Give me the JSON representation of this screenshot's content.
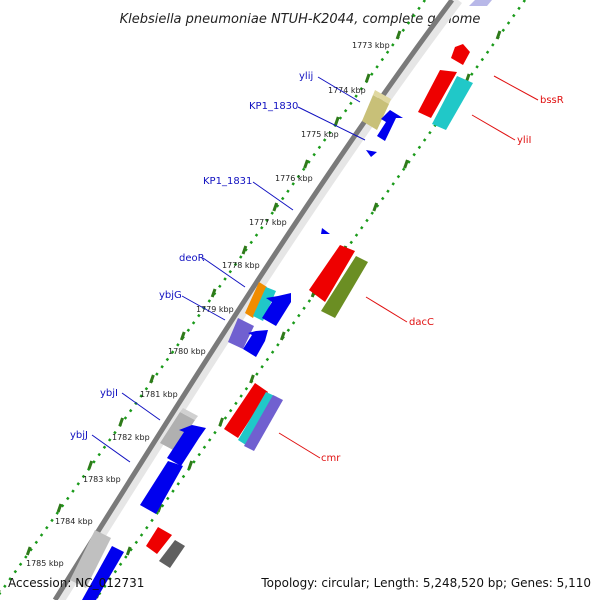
{
  "title": "Klebsiella pneumoniae NTUH-K2044, complete genome",
  "footer": {
    "accession": "Accession: NC_012731",
    "topology": "Topology: circular; Length: 5,248,520 bp; Genes: 5,110"
  },
  "colors": {
    "axis": "#808080",
    "tick_dot": "#1a9a1a",
    "tick_major": "#2f7a1a",
    "left_label": "#1010c0",
    "right_label": "#e01010",
    "gene_blue": "#0000ee"
  },
  "ticks": [
    "1773 kbp",
    "1774 kbp",
    "1775 kbp",
    "1776 kbp",
    "1777 kbp",
    "1778 kbp",
    "1779 kbp",
    "1780 kbp",
    "1781 kbp",
    "1782 kbp",
    "1783 kbp",
    "1784 kbp",
    "1785 kbp"
  ],
  "left_genes": [
    "ylij",
    "KP1_1830",
    "KP1_1831",
    "deoR",
    "ybjG",
    "ybjI",
    "ybjJ"
  ],
  "right_genes": [
    "bssR",
    "yliI",
    "dacC",
    "cmr"
  ]
}
